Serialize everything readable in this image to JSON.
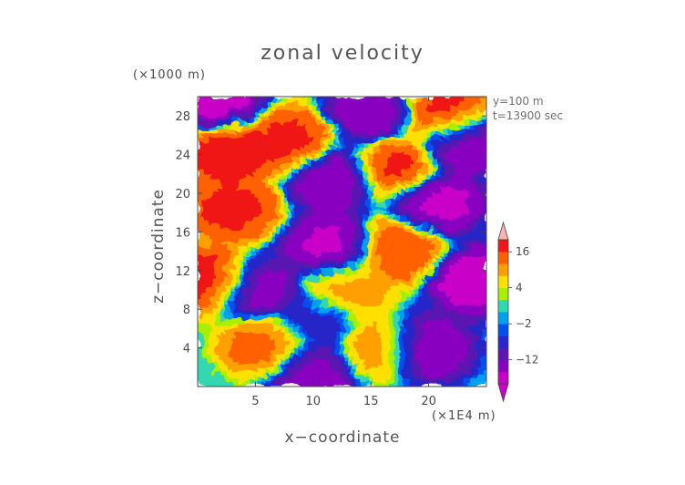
{
  "chart_data": {
    "type": "heatmap",
    "title": "zonal velocity",
    "xlabel": "x−coordinate",
    "ylabel": "z−coordinate",
    "x_unit": "(×1E4 m)",
    "y_unit": "(×1000 m)",
    "annotations": [
      "y=100 m",
      "t=13900 sec"
    ],
    "xlim": [
      0,
      25
    ],
    "ylim": [
      0,
      30
    ],
    "xticks": [
      5,
      10,
      15,
      20
    ],
    "yticks": [
      4,
      8,
      12,
      16,
      20,
      24,
      28
    ],
    "colorbar": {
      "ticks": [
        16,
        4,
        -2,
        -12
      ],
      "levels": [
        -20,
        -16,
        -12,
        -8,
        -4,
        -2,
        0,
        2,
        4,
        8,
        12,
        16,
        20
      ],
      "colors": [
        "#c800c8",
        "#8a00c0",
        "#5a18b0",
        "#2828c8",
        "#0050f0",
        "#00a0f0",
        "#30d8b0",
        "#a8f000",
        "#ffe000",
        "#ffa000",
        "#ff6000",
        "#f01818",
        "#ffb4b4"
      ],
      "extend": "both"
    },
    "blobs": [
      {
        "label": "upper-left salmon maximum",
        "x": 2.5,
        "z": 24.5,
        "u": 20
      },
      {
        "label": "upper-right salmon maximum",
        "x": 21.5,
        "z": 28.0,
        "u": 20
      },
      {
        "label": "right-center salmon maximum",
        "x": 17.0,
        "z": 22.5,
        "u": 19
      },
      {
        "label": "center-upper salmon maximum",
        "x": 8.0,
        "z": 25.5,
        "u": 18
      },
      {
        "label": "left salmon band",
        "x": 3.0,
        "z": 18.5,
        "u": 18
      },
      {
        "label": "middle salmon band",
        "x": 17.5,
        "z": 14.5,
        "u": 17
      },
      {
        "label": "left column maximum",
        "x": 1.2,
        "z": 11.0,
        "u": 20
      },
      {
        "label": "central orange mass",
        "x": 12.5,
        "z": 10.0,
        "u": 11
      },
      {
        "label": "lower-left red core",
        "x": 6.0,
        "z": 4.5,
        "u": 15
      },
      {
        "label": "lower-right orange",
        "x": 16.0,
        "z": 4.0,
        "u": 12
      },
      {
        "label": "lower-right purple minimum",
        "x": 19.5,
        "z": 4.0,
        "u": -18
      },
      {
        "label": "central purple band",
        "x": 11.5,
        "z": 14.5,
        "u": -18
      },
      {
        "label": "upper purple band",
        "x": 12.0,
        "z": 21.5,
        "u": -17
      },
      {
        "label": "right-middle purple",
        "x": 20.5,
        "z": 19.0,
        "u": -19
      },
      {
        "label": "right edge magenta",
        "x": 24.2,
        "z": 11.0,
        "u": -20
      },
      {
        "label": "top-left magenta",
        "x": 1.5,
        "z": 29.5,
        "u": -20
      },
      {
        "label": "left purple column",
        "x": 5.0,
        "z": 10.0,
        "u": -16
      },
      {
        "label": "bottom blue band",
        "x": 10.0,
        "z": 1.5,
        "u": -15
      },
      {
        "label": "top purple",
        "x": 15.0,
        "z": 28.5,
        "u": -16
      },
      {
        "label": "central blue",
        "x": 10.0,
        "z": 7.0,
        "u": -8
      },
      {
        "label": "top-right purple",
        "x": 23.0,
        "z": 25.5,
        "u": -18
      }
    ]
  }
}
